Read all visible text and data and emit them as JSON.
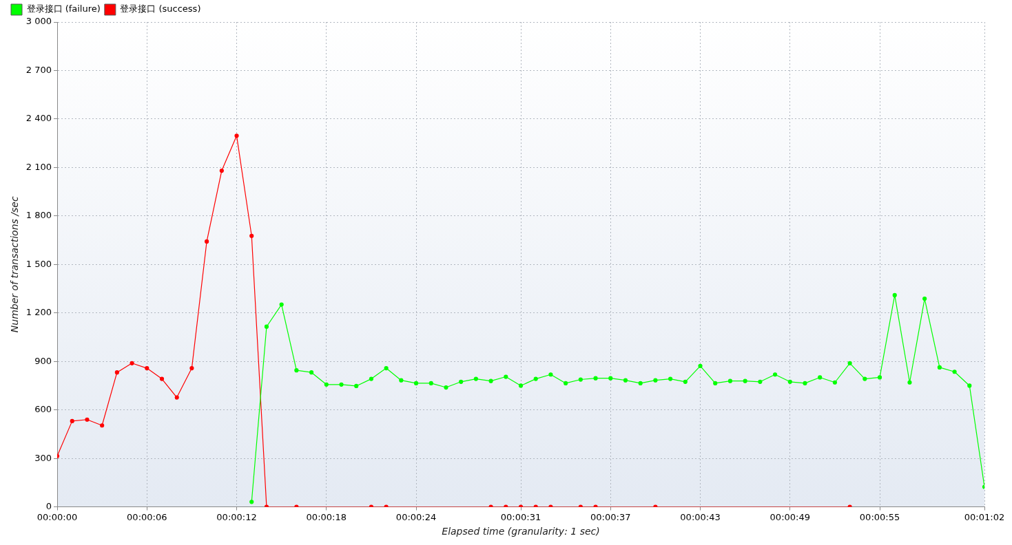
{
  "chart_data": {
    "type": "line",
    "xlabel": "Elapsed time (granularity: 1 sec)",
    "ylabel": "Number of transactions /sec",
    "xlim": [
      0,
      62
    ],
    "xticks": [
      {
        "value": 0,
        "label": "00:00:00"
      },
      {
        "value": 6,
        "label": "00:00:06"
      },
      {
        "value": 12,
        "label": "00:00:12"
      },
      {
        "value": 18,
        "label": "00:00:18"
      },
      {
        "value": 24,
        "label": "00:00:24"
      },
      {
        "value": 31,
        "label": "00:00:31"
      },
      {
        "value": 37,
        "label": "00:00:37"
      },
      {
        "value": 43,
        "label": "00:00:43"
      },
      {
        "value": 49,
        "label": "00:00:49"
      },
      {
        "value": 55,
        "label": "00:00:55"
      },
      {
        "value": 62,
        "label": "00:01:02"
      }
    ],
    "ylim": [
      0,
      3000
    ],
    "yticks": [
      0,
      300,
      600,
      900,
      {
        "value": 1200,
        "label": "1 200"
      },
      {
        "value": 1500,
        "label": "1 500"
      },
      {
        "value": 1800,
        "label": "1 800"
      },
      {
        "value": 2100,
        "label": "2 100"
      },
      {
        "value": 2400,
        "label": "2 400"
      },
      {
        "value": 2700,
        "label": "2 700"
      },
      {
        "value": 3000,
        "label": "3 000"
      }
    ],
    "grid": true,
    "legend": "top left",
    "marker": "circle",
    "line_style": "solid",
    "series": [
      {
        "name": "登录接口 (failure)",
        "color": "#00ff00",
        "x": [
          13,
          14,
          15,
          16,
          17,
          18,
          19,
          20,
          21,
          22,
          23,
          24,
          25,
          26,
          27,
          28,
          29,
          30,
          31,
          32,
          33,
          34,
          35,
          36,
          37,
          38,
          39,
          40,
          41,
          42,
          43,
          44,
          45,
          46,
          47,
          48,
          49,
          50,
          51,
          52,
          53,
          54,
          55,
          56,
          57,
          58,
          59,
          60,
          61,
          62
        ],
        "values": [
          31,
          1115,
          1252,
          845,
          832,
          757,
          757,
          748,
          792,
          858,
          783,
          765,
          765,
          739,
          774,
          792,
          779,
          805,
          750,
          792,
          819,
          765,
          788,
          796,
          796,
          783,
          765,
          783,
          792,
          774,
          872,
          765,
          779,
          779,
          774,
          819,
          774,
          765,
          801,
          770,
          889,
          792,
          801,
          1310,
          770,
          1288,
          863,
          836,
          750,
          124
        ]
      },
      {
        "name": "登录接口 (success)",
        "color": "#ff0000",
        "x": [
          0,
          1,
          2,
          3,
          4,
          5,
          6,
          7,
          8,
          9,
          10,
          11,
          12,
          13,
          14,
          16,
          21,
          22,
          29,
          30,
          31,
          32,
          33,
          35,
          36,
          40,
          53
        ],
        "values": [
          314,
          531,
          540,
          504,
          832,
          889,
          858,
          792,
          677,
          858,
          1642,
          2080,
          2296,
          1677,
          0,
          0,
          0,
          0,
          0,
          0,
          0,
          0,
          0,
          0,
          0,
          0,
          0
        ]
      }
    ]
  }
}
